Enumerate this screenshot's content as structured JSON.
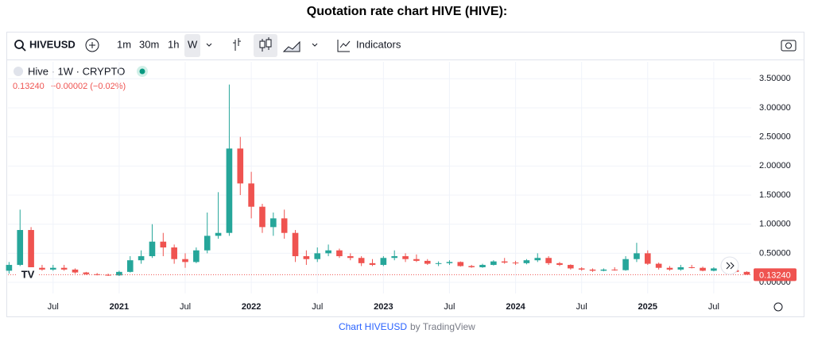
{
  "page_title": "Quotation rate chart HIVE (HIVE):",
  "toolbar": {
    "symbol": "HIVEUSD",
    "intervals": [
      "1m",
      "30m",
      "1h",
      "W"
    ],
    "indicators": "Indicators"
  },
  "legend": {
    "name": "Hive · 1W · CRYPTO",
    "last": "0.13240",
    "change": "−0.00002 (−0.02%)"
  },
  "footer": {
    "link": "Chart HIVEUSD",
    "by": "by TradingView"
  },
  "chart_data": {
    "type": "candlestick",
    "up_color": "#26a69a",
    "down_color": "#ef5350",
    "open": [
      0.2,
      0.3,
      0.9,
      0.25,
      0.22,
      0.25,
      0.22,
      0.17,
      0.14,
      0.13,
      0.12,
      0.18,
      0.38,
      0.45,
      0.7,
      0.6,
      0.4,
      0.35,
      0.55,
      0.8,
      0.85,
      2.3,
      1.7,
      1.3,
      0.95,
      1.1,
      0.85,
      0.45,
      0.4,
      0.5,
      0.55,
      0.45,
      0.42,
      0.33,
      0.3,
      0.42,
      0.45,
      0.4,
      0.37,
      0.32,
      0.33,
      0.35,
      0.28,
      0.26,
      0.3,
      0.36,
      0.34,
      0.33,
      0.38,
      0.42,
      0.33,
      0.3,
      0.24,
      0.22,
      0.2,
      0.22,
      0.21,
      0.4,
      0.5,
      0.32,
      0.25,
      0.22,
      0.26,
      0.25,
      0.2,
      0.24,
      0.21,
      0.18
    ],
    "high": [
      0.35,
      1.25,
      0.95,
      0.3,
      0.3,
      0.3,
      0.24,
      0.18,
      0.16,
      0.15,
      0.2,
      0.45,
      0.55,
      1.0,
      0.85,
      0.65,
      0.5,
      0.6,
      1.2,
      1.55,
      3.4,
      2.5,
      1.9,
      1.35,
      1.2,
      1.25,
      0.9,
      0.55,
      0.6,
      0.65,
      0.58,
      0.5,
      0.45,
      0.4,
      0.45,
      0.55,
      0.5,
      0.48,
      0.4,
      0.36,
      0.38,
      0.36,
      0.3,
      0.32,
      0.38,
      0.42,
      0.37,
      0.4,
      0.5,
      0.45,
      0.35,
      0.31,
      0.26,
      0.24,
      0.24,
      0.26,
      0.45,
      0.68,
      0.55,
      0.34,
      0.28,
      0.3,
      0.3,
      0.27,
      0.26,
      0.28,
      0.23,
      0.19
    ],
    "low": [
      0.15,
      0.28,
      0.22,
      0.2,
      0.2,
      0.2,
      0.15,
      0.13,
      0.12,
      0.11,
      0.11,
      0.17,
      0.32,
      0.42,
      0.45,
      0.32,
      0.25,
      0.33,
      0.5,
      0.75,
      0.8,
      1.5,
      1.1,
      0.85,
      0.8,
      0.75,
      0.35,
      0.3,
      0.35,
      0.45,
      0.42,
      0.38,
      0.28,
      0.28,
      0.28,
      0.38,
      0.35,
      0.35,
      0.3,
      0.28,
      0.3,
      0.27,
      0.25,
      0.25,
      0.29,
      0.32,
      0.3,
      0.31,
      0.35,
      0.3,
      0.28,
      0.22,
      0.2,
      0.18,
      0.19,
      0.2,
      0.2,
      0.35,
      0.3,
      0.22,
      0.2,
      0.2,
      0.24,
      0.19,
      0.19,
      0.2,
      0.17,
      0.13
    ],
    "close": [
      0.3,
      0.9,
      0.25,
      0.22,
      0.25,
      0.22,
      0.17,
      0.14,
      0.13,
      0.12,
      0.18,
      0.38,
      0.45,
      0.7,
      0.6,
      0.4,
      0.35,
      0.55,
      0.8,
      0.85,
      2.3,
      1.7,
      1.3,
      0.95,
      1.1,
      0.85,
      0.45,
      0.4,
      0.5,
      0.55,
      0.45,
      0.42,
      0.33,
      0.3,
      0.42,
      0.45,
      0.4,
      0.37,
      0.32,
      0.33,
      0.35,
      0.28,
      0.26,
      0.3,
      0.36,
      0.34,
      0.33,
      0.38,
      0.42,
      0.33,
      0.3,
      0.24,
      0.22,
      0.2,
      0.22,
      0.21,
      0.4,
      0.5,
      0.32,
      0.25,
      0.22,
      0.26,
      0.25,
      0.2,
      0.24,
      0.21,
      0.18,
      0.1324
    ],
    "xlim": [
      -0.1,
      67.4
    ],
    "xticks": [
      {
        "value": 4,
        "label": "Jul"
      },
      {
        "value": 10,
        "label": "2021"
      },
      {
        "value": 16,
        "label": "Jul"
      },
      {
        "value": 22,
        "label": "2022"
      },
      {
        "value": 28,
        "label": "Jul"
      },
      {
        "value": 34,
        "label": "2023"
      },
      {
        "value": 40,
        "label": "Jul"
      },
      {
        "value": 46,
        "label": "2024"
      },
      {
        "value": 52,
        "label": "Jul"
      },
      {
        "value": 58,
        "label": "2025"
      },
      {
        "value": 64,
        "label": "Jul"
      }
    ],
    "ylim": [
      -0.19,
      3.79
    ],
    "yticks": [
      {
        "value": 0,
        "label": "0.00000"
      },
      {
        "value": 0.5,
        "label": "0.50000"
      },
      {
        "value": 1,
        "label": "1.00000"
      },
      {
        "value": 1.5,
        "label": "1.50000"
      },
      {
        "value": 2,
        "label": "2.00000"
      },
      {
        "value": 2.5,
        "label": "2.50000"
      },
      {
        "value": 3,
        "label": "3.00000"
      },
      {
        "value": 3.5,
        "label": "3.50000"
      }
    ],
    "last_price": {
      "value": 0.1324,
      "label": "0.13240",
      "color": "#ef5350"
    },
    "grid": true
  }
}
